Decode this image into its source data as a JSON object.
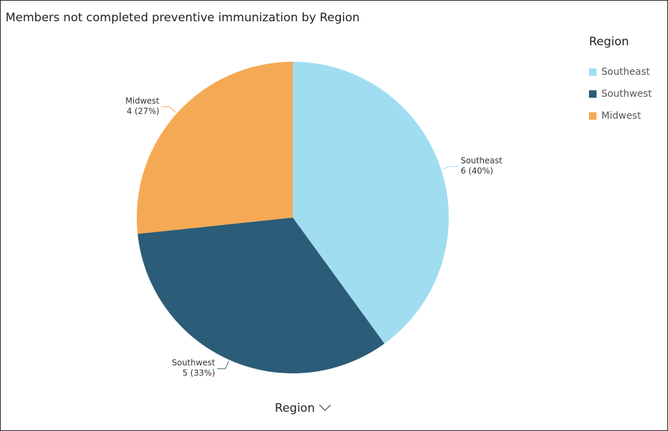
{
  "chart_data": {
    "type": "pie",
    "title": "Members not completed preventive immunization by Region",
    "legend_title": "Region",
    "x_label": "Region",
    "categories": [
      "Southeast",
      "Southwest",
      "Midwest"
    ],
    "values": [
      6,
      5,
      4
    ],
    "value_labels": [
      "6 (40%)",
      "5 (33%)",
      "4 (27%)"
    ],
    "colors": [
      "#a0ddf0",
      "#2b5c78",
      "#f5a954"
    ]
  }
}
